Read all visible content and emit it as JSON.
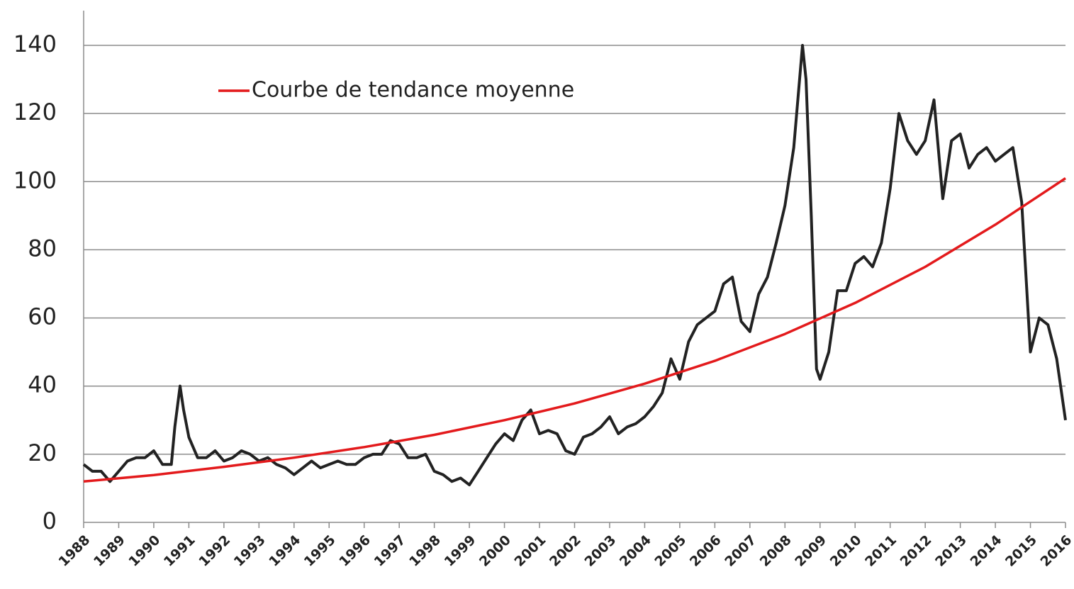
{
  "chart_data": {
    "type": "line",
    "xlim": [
      1988,
      2016
    ],
    "xticks": [
      1988,
      1989,
      1990,
      1991,
      1992,
      1993,
      1994,
      1995,
      1996,
      1997,
      1998,
      1999,
      2000,
      2001,
      2002,
      2003,
      2004,
      2005,
      2006,
      2007,
      2008,
      2009,
      2010,
      2011,
      2012,
      2013,
      2014,
      2015,
      2016
    ],
    "ylim": [
      0,
      140
    ],
    "yticks": [
      0,
      20,
      40,
      60,
      80,
      100,
      120,
      140
    ],
    "grid": true,
    "series": [
      {
        "color": "#222222",
        "x": [
          1988,
          1988.25,
          1988.5,
          1988.75,
          1989,
          1989.25,
          1989.5,
          1989.75,
          1990,
          1990.25,
          1990.5,
          1990.6,
          1990.75,
          1990.85,
          1991,
          1991.25,
          1991.5,
          1991.75,
          1992,
          1992.25,
          1992.5,
          1992.75,
          1993,
          1993.25,
          1993.5,
          1993.75,
          1994,
          1994.25,
          1994.5,
          1994.75,
          1995,
          1995.25,
          1995.5,
          1995.75,
          1996,
          1996.25,
          1996.5,
          1996.75,
          1997,
          1997.25,
          1997.5,
          1997.75,
          1998,
          1998.25,
          1998.5,
          1998.75,
          1999,
          1999.25,
          1999.5,
          1999.75,
          2000,
          2000.25,
          2000.5,
          2000.75,
          2001,
          2001.25,
          2001.5,
          2001.75,
          2002,
          2002.25,
          2002.5,
          2002.75,
          2003,
          2003.25,
          2003.5,
          2003.75,
          2004,
          2004.25,
          2004.5,
          2004.75,
          2005,
          2005.25,
          2005.5,
          2005.75,
          2006,
          2006.25,
          2006.5,
          2006.75,
          2007,
          2007.25,
          2007.5,
          2007.75,
          2008,
          2008.25,
          2008.5,
          2008.6,
          2008.75,
          2008.9,
          2009,
          2009.25,
          2009.5,
          2009.75,
          2010,
          2010.25,
          2010.5,
          2010.75,
          2011,
          2011.25,
          2011.5,
          2011.75,
          2012,
          2012.25,
          2012.5,
          2012.75,
          2013,
          2013.25,
          2013.5,
          2013.75,
          2014,
          2014.25,
          2014.5,
          2014.75,
          2015,
          2015.25,
          2015.5,
          2015.75,
          2016
        ],
        "values": [
          17,
          15,
          15,
          12,
          15,
          18,
          19,
          19,
          21,
          17,
          17,
          28,
          40,
          33,
          25,
          19,
          19,
          21,
          18,
          19,
          21,
          20,
          18,
          19,
          17,
          16,
          14,
          16,
          18,
          16,
          17,
          18,
          17,
          17,
          19,
          20,
          20,
          24,
          23,
          19,
          19,
          20,
          15,
          14,
          12,
          13,
          11,
          15,
          19,
          23,
          26,
          24,
          30,
          33,
          26,
          27,
          26,
          21,
          20,
          25,
          26,
          28,
          31,
          26,
          28,
          29,
          31,
          34,
          38,
          48,
          42,
          53,
          58,
          60,
          62,
          70,
          72,
          59,
          56,
          67,
          72,
          82,
          93,
          110,
          140,
          130,
          90,
          45,
          42,
          50,
          68,
          68,
          76,
          78,
          75,
          82,
          98,
          120,
          112,
          108,
          112,
          124,
          95,
          112,
          114,
          104,
          108,
          110,
          106,
          108,
          110,
          94,
          50,
          60,
          58,
          48,
          30
        ]
      },
      {
        "name": "Courbe de tendance moyenne",
        "color": "#e31a1c",
        "x": [
          1988,
          1990,
          1992,
          1994,
          1996,
          1998,
          2000,
          2002,
          2004,
          2006,
          2008,
          2010,
          2012,
          2014,
          2016
        ],
        "values": [
          12,
          13.9,
          16.3,
          19.0,
          22.1,
          25.7,
          30.0,
          34.9,
          40.7,
          47.4,
          55.3,
          64.4,
          75.0,
          87.4,
          101
        ]
      }
    ]
  }
}
